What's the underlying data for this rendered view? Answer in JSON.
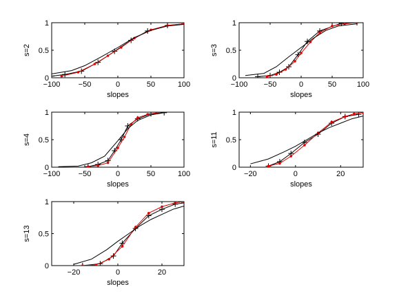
{
  "chart_data": [
    {
      "type": "line",
      "ylabel": "s=2",
      "xlabel": "slopes",
      "xlim": [
        -100,
        100
      ],
      "ylim": [
        0,
        1
      ],
      "xticks": [
        -100,
        -50,
        0,
        50,
        100
      ],
      "yticks": [
        0,
        0.5,
        1
      ],
      "xtick_labels": [
        "−100",
        "−50",
        "0",
        "50",
        "100"
      ],
      "ytick_labels": [
        "0",
        "0.5",
        "1"
      ],
      "series": [
        {
          "style": "plus",
          "color": "#000000",
          "x": [
            -100,
            -80,
            -55,
            -30,
            -5,
            20,
            45,
            75,
            100
          ],
          "y": [
            0.03,
            0.06,
            0.12,
            0.28,
            0.48,
            0.68,
            0.85,
            0.95,
            0.98
          ]
        },
        {
          "style": "dot",
          "color": "#e00000",
          "x": [
            -85,
            -60,
            -35,
            -15,
            5,
            25,
            50,
            75,
            100
          ],
          "y": [
            0.03,
            0.1,
            0.25,
            0.4,
            0.55,
            0.72,
            0.87,
            0.95,
            0.98
          ]
        },
        {
          "style": "line",
          "color": "#000000",
          "x": [
            -100,
            -70,
            -50,
            -25,
            0,
            25,
            50,
            75,
            100
          ],
          "y": [
            0.07,
            0.13,
            0.22,
            0.38,
            0.55,
            0.73,
            0.86,
            0.94,
            0.97
          ]
        }
      ]
    },
    {
      "type": "line",
      "ylabel": "s=3",
      "xlabel": "slopes",
      "xlim": [
        -100,
        100
      ],
      "ylim": [
        0,
        1
      ],
      "xticks": [
        -100,
        -50,
        0,
        50,
        100
      ],
      "yticks": [
        0,
        0.5,
        1
      ],
      "xtick_labels": [
        "−100",
        "−50",
        "0",
        "50",
        "100"
      ],
      "ytick_labels": [
        "0",
        "0.5",
        "1"
      ],
      "series": [
        {
          "style": "plus",
          "color": "#000000",
          "x": [
            -70,
            -50,
            -35,
            -20,
            -5,
            10,
            30,
            65,
            90
          ],
          "y": [
            0.02,
            0.04,
            0.1,
            0.2,
            0.42,
            0.66,
            0.85,
            0.99,
            1.0
          ]
        },
        {
          "style": "dot",
          "color": "#e00000",
          "x": [
            -55,
            -40,
            -25,
            -10,
            0,
            15,
            30,
            50,
            70,
            90
          ],
          "y": [
            0.02,
            0.06,
            0.15,
            0.3,
            0.45,
            0.65,
            0.82,
            0.94,
            0.98,
            1.0
          ]
        },
        {
          "style": "line",
          "color": "#000000",
          "x": [
            -90,
            -60,
            -40,
            -20,
            0,
            20,
            40,
            60,
            90
          ],
          "y": [
            0.04,
            0.08,
            0.2,
            0.38,
            0.55,
            0.72,
            0.86,
            0.94,
            0.98
          ]
        }
      ]
    },
    {
      "type": "line",
      "ylabel": "s=4",
      "xlabel": "slopes",
      "xlim": [
        -100,
        100
      ],
      "ylim": [
        0,
        1
      ],
      "xticks": [
        -100,
        -50,
        0,
        50,
        100
      ],
      "yticks": [
        0,
        0.5,
        1
      ],
      "xtick_labels": [
        "−100",
        "−50",
        "0",
        "50",
        "100"
      ],
      "ytick_labels": [
        "0",
        "0.5",
        "1"
      ],
      "series": [
        {
          "style": "plus",
          "color": "#000000",
          "x": [
            -45,
            -30,
            -15,
            -5,
            5,
            15,
            30,
            50,
            70
          ],
          "y": [
            0.01,
            0.05,
            0.12,
            0.3,
            0.5,
            0.75,
            0.88,
            0.97,
            0.99
          ]
        },
        {
          "style": "dot",
          "color": "#e00000",
          "x": [
            -45,
            -30,
            -15,
            0,
            10,
            20,
            30,
            45,
            60
          ],
          "y": [
            0.01,
            0.03,
            0.08,
            0.35,
            0.55,
            0.78,
            0.9,
            0.96,
            0.99
          ]
        },
        {
          "style": "line",
          "color": "#000000",
          "x": [
            -90,
            -60,
            -40,
            -20,
            0,
            15,
            30,
            50,
            70
          ],
          "y": [
            0.01,
            0.02,
            0.08,
            0.2,
            0.48,
            0.7,
            0.85,
            0.95,
            0.99
          ]
        }
      ]
    },
    {
      "type": "line",
      "ylabel": "s=11",
      "xlabel": "slopes",
      "xlim": [
        -25,
        30
      ],
      "ylim": [
        0,
        1
      ],
      "xticks": [
        -20,
        0,
        20
      ],
      "yticks": [
        0,
        0.5,
        1
      ],
      "xtick_labels": [
        "−20",
        "0",
        "20"
      ],
      "ytick_labels": [
        "0",
        "0.5",
        "1"
      ],
      "series": [
        {
          "style": "plus",
          "color": "#000000",
          "x": [
            -12,
            -7,
            -2,
            4,
            10,
            16,
            22,
            28
          ],
          "y": [
            0.02,
            0.1,
            0.25,
            0.45,
            0.6,
            0.8,
            0.92,
            0.96
          ]
        },
        {
          "style": "dot",
          "color": "#e00000",
          "x": [
            -12,
            -7,
            -2,
            4,
            10,
            16,
            22,
            26,
            30
          ],
          "y": [
            0.02,
            0.07,
            0.2,
            0.4,
            0.62,
            0.82,
            0.92,
            0.97,
            0.99
          ]
        },
        {
          "style": "line",
          "color": "#000000",
          "x": [
            -20,
            -12,
            -5,
            0,
            5,
            10,
            15,
            20,
            25,
            30
          ],
          "y": [
            0.06,
            0.15,
            0.28,
            0.38,
            0.5,
            0.62,
            0.72,
            0.8,
            0.88,
            0.93
          ]
        }
      ]
    },
    {
      "type": "line",
      "ylabel": "s=13",
      "xlabel": "slopes",
      "xlim": [
        -30,
        30
      ],
      "ylim": [
        0,
        1
      ],
      "xticks": [
        -20,
        0,
        20
      ],
      "yticks": [
        0,
        0.5,
        1
      ],
      "xtick_labels": [
        "−20",
        "0",
        "20"
      ],
      "ytick_labels": [
        "0",
        "0.5",
        "1"
      ],
      "series": [
        {
          "style": "plus",
          "color": "#000000",
          "x": [
            -16,
            -8,
            -2,
            2,
            8,
            14,
            20,
            26,
            30
          ],
          "y": [
            0.0,
            0.03,
            0.15,
            0.35,
            0.58,
            0.78,
            0.88,
            0.96,
            0.98
          ]
        },
        {
          "style": "dot",
          "color": "#e00000",
          "x": [
            -16,
            -10,
            -4,
            2,
            8,
            14,
            20,
            26,
            30
          ],
          "y": [
            0.0,
            0.01,
            0.1,
            0.3,
            0.6,
            0.82,
            0.92,
            0.98,
            1.0
          ]
        },
        {
          "style": "line",
          "color": "#000000",
          "x": [
            -20,
            -12,
            -5,
            0,
            5,
            10,
            15,
            20,
            25,
            30
          ],
          "y": [
            0.02,
            0.1,
            0.25,
            0.38,
            0.5,
            0.62,
            0.72,
            0.8,
            0.88,
            0.93
          ]
        }
      ]
    }
  ]
}
